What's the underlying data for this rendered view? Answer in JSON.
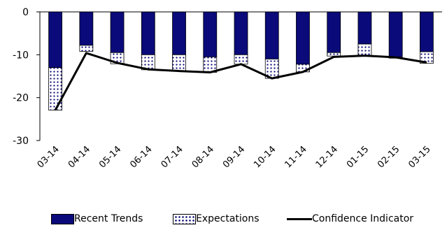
{
  "chart_data": {
    "type": "bar",
    "categories": [
      "03-14",
      "04-14",
      "05-14",
      "06-14",
      "07-14",
      "08-14",
      "09-14",
      "10-14",
      "11-14",
      "12-14",
      "01-15",
      "02-15",
      "03-15"
    ],
    "series": [
      {
        "name": "Recent Trends",
        "kind": "stacked-bar",
        "pattern": "solid",
        "color": "#0a0a7a",
        "values": [
          -13.0,
          -7.8,
          -9.5,
          -10.0,
          -10.0,
          -10.5,
          -10.0,
          -11.0,
          -12.2,
          -9.5,
          -7.5,
          -10.5,
          -9.3
        ]
      },
      {
        "name": "Expectations",
        "kind": "stacked-bar",
        "pattern": "dots",
        "color": "#0a0a7a",
        "values": [
          -9.9,
          -1.4,
          -2.6,
          -3.5,
          -3.8,
          -3.6,
          -2.2,
          -4.5,
          -1.8,
          -0.8,
          -2.7,
          -0.3,
          -2.7
        ]
      },
      {
        "name": "Confidence Indicator",
        "kind": "line",
        "color": "#000000",
        "values": [
          -22.9,
          -9.6,
          -11.9,
          -13.4,
          -13.8,
          -14.1,
          -12.2,
          -15.5,
          -14.0,
          -10.5,
          -10.2,
          -10.6,
          -11.8
        ]
      }
    ],
    "y_ticks": [
      0,
      -10,
      -20,
      -30
    ],
    "y_tick_labels": [
      "0",
      "-10",
      "-20",
      "-30"
    ],
    "ylim": [
      -30,
      0
    ],
    "legend": "bottom",
    "grid": false
  }
}
